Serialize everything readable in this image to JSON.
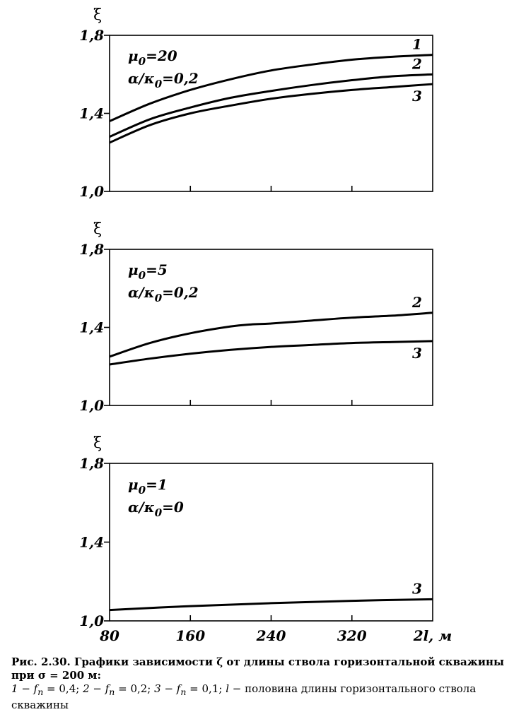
{
  "chart_data": [
    {
      "type": "line",
      "ylabel": "ξ",
      "xlabel": "2l, м",
      "xlim": [
        80,
        400
      ],
      "ylim": [
        1.0,
        1.8
      ],
      "xticks": [
        80,
        160,
        240,
        320
      ],
      "yticks": [
        1.0,
        1.4,
        1.8
      ],
      "ytick_labels": [
        "1,0",
        "1,4",
        "1,8"
      ],
      "show_xtick_labels": false,
      "grid": false,
      "params": [
        "μ 0=20",
        "α/κ 0=0,2"
      ],
      "series": [
        {
          "name": "1",
          "x": [
            80,
            120,
            160,
            200,
            240,
            280,
            320,
            360,
            400
          ],
          "y": [
            1.36,
            1.45,
            1.52,
            1.575,
            1.62,
            1.65,
            1.675,
            1.69,
            1.7
          ]
        },
        {
          "name": "2",
          "x": [
            80,
            120,
            160,
            200,
            240,
            280,
            320,
            360,
            400
          ],
          "y": [
            1.28,
            1.37,
            1.43,
            1.48,
            1.515,
            1.545,
            1.57,
            1.59,
            1.6
          ]
        },
        {
          "name": "3",
          "x": [
            80,
            120,
            160,
            200,
            240,
            280,
            320,
            360,
            400
          ],
          "y": [
            1.25,
            1.34,
            1.4,
            1.44,
            1.475,
            1.5,
            1.52,
            1.535,
            1.55
          ]
        }
      ]
    },
    {
      "type": "line",
      "ylabel": "ξ",
      "xlabel": "2l, м",
      "xlim": [
        80,
        400
      ],
      "ylim": [
        1.0,
        1.8
      ],
      "xticks": [
        80,
        160,
        240,
        320
      ],
      "yticks": [
        1.0,
        1.4,
        1.8
      ],
      "ytick_labels": [
        "1,0",
        "1,4",
        "1,8"
      ],
      "show_xtick_labels": false,
      "grid": false,
      "params": [
        "μ 0=5",
        "α/κ 0=0,2"
      ],
      "series": [
        {
          "name": "2",
          "x": [
            80,
            120,
            160,
            200,
            220,
            240,
            280,
            320,
            360,
            400
          ],
          "y": [
            1.25,
            1.32,
            1.37,
            1.405,
            1.415,
            1.42,
            1.435,
            1.45,
            1.46,
            1.475
          ]
        },
        {
          "name": "3",
          "x": [
            80,
            120,
            160,
            200,
            240,
            280,
            320,
            360,
            400
          ],
          "y": [
            1.21,
            1.24,
            1.265,
            1.285,
            1.3,
            1.31,
            1.32,
            1.325,
            1.33
          ]
        }
      ]
    },
    {
      "type": "line",
      "ylabel": "ξ",
      "xlabel": "2l, м",
      "xlim": [
        80,
        400
      ],
      "ylim": [
        1.0,
        1.8
      ],
      "xticks": [
        80,
        160,
        240,
        320
      ],
      "yticks": [
        1.0,
        1.4,
        1.8
      ],
      "ytick_labels": [
        "1,0",
        "1,4",
        "1,8"
      ],
      "xtick_labels": [
        "80",
        "160",
        "240",
        "320"
      ],
      "show_xtick_labels": true,
      "grid": false,
      "params": [
        "μ 0=1",
        "α/κ 0=0"
      ],
      "series": [
        {
          "name": "3",
          "x": [
            80,
            160,
            240,
            320,
            400
          ],
          "y": [
            1.055,
            1.075,
            1.09,
            1.102,
            1.11
          ]
        }
      ]
    }
  ],
  "caption": {
    "title": "Рис. 2.30. Графики зависимости ζ от длины ствола горизонтальной скважины при σ = 200 м:",
    "legend": [
      {
        "num": "1",
        "text": " − f",
        "sub": "п",
        "val": " = 0,4; "
      },
      {
        "num": "2",
        "text": " − f",
        "sub": "п",
        "val": " = 0,2; "
      },
      {
        "num": "3",
        "text": " − f",
        "sub": "п",
        "val": " = 0,1; "
      },
      {
        "num": "l",
        "text": " − половина длины горизонтального ствола скважины",
        "sub": "",
        "val": ""
      }
    ]
  }
}
